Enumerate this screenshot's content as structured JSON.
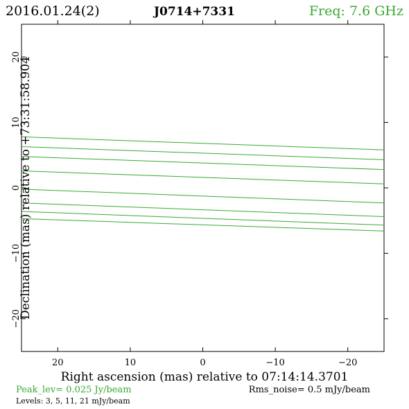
{
  "header": {
    "date": "2016.01.24(2)",
    "source": "J0714+7331",
    "freq": "Freq: 7.6 GHz"
  },
  "footer": {
    "peak": "Peak_lev=  0.025 Jy/beam",
    "rms": "Rms_noise=   0.5 mJy/beam",
    "levels": "Levels:   3,   5,  11,  21 mJy/beam"
  },
  "colors": {
    "contour": "#3aa832",
    "peak_text": "#3aa832",
    "freq_text": "#3aa832",
    "axes": "#000000"
  },
  "chart_data": {
    "type": "line",
    "xlabel": "Right ascension (mas) relative to 07:14:14.3701",
    "ylabel": "Declination (mas) relative to +73:31:58.904",
    "xlim": [
      25,
      -25
    ],
    "ylim": [
      -25,
      25
    ],
    "xticks": [
      20,
      10,
      0,
      -10,
      -20
    ],
    "yticks": [
      20,
      10,
      0,
      -10,
      -20
    ],
    "xtick_labels": [
      "20",
      "10",
      "0",
      "−10",
      "−20"
    ],
    "ytick_labels": [
      "20",
      "10",
      "0",
      "−10",
      "−20"
    ],
    "grid": false,
    "series": [
      {
        "x": [
          25,
          -25
        ],
        "y": [
          7.8,
          5.8
        ]
      },
      {
        "x": [
          25,
          -25
        ],
        "y": [
          6.3,
          4.3
        ]
      },
      {
        "x": [
          25,
          -25
        ],
        "y": [
          4.8,
          2.8
        ]
      },
      {
        "x": [
          25,
          -25
        ],
        "y": [
          2.6,
          0.6
        ]
      },
      {
        "x": [
          25,
          -25
        ],
        "y": [
          -0.2,
          -2.3
        ]
      },
      {
        "x": [
          25,
          -25
        ],
        "y": [
          -2.3,
          -4.4
        ]
      },
      {
        "x": [
          25,
          -25
        ],
        "y": [
          -3.6,
          -5.7
        ]
      },
      {
        "x": [
          25,
          -25
        ],
        "y": [
          -4.7,
          -6.6
        ]
      }
    ]
  }
}
